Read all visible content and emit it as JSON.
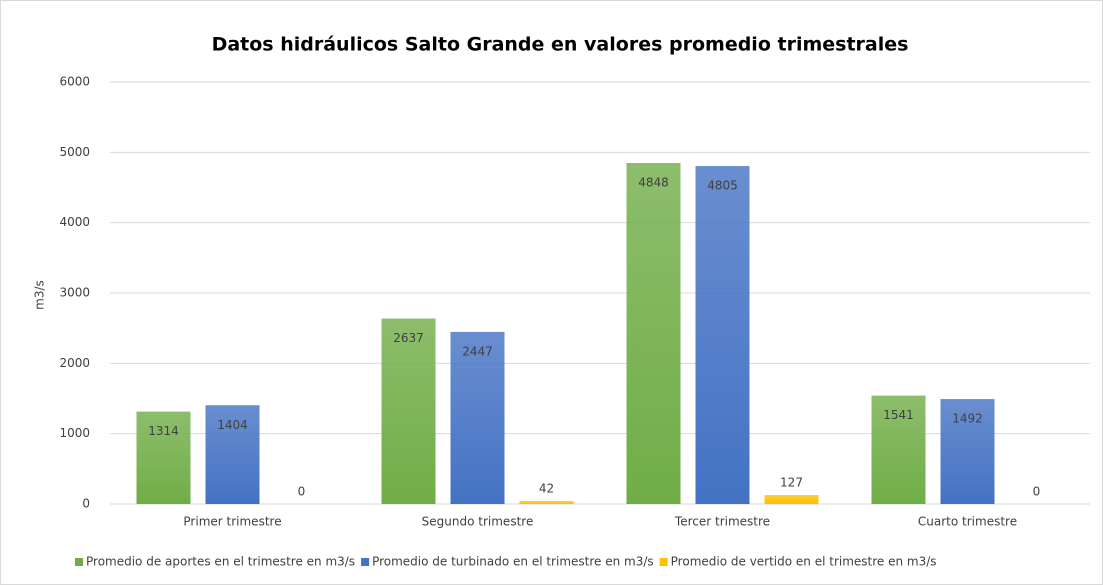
{
  "chart_data": {
    "type": "bar",
    "title": "Datos hidráulicos  Salto Grande  en valores promedio trimestrales",
    "y_label": "m3/s",
    "categories": [
      "Primer trimestre",
      "Segundo trimestre",
      "Tercer trimestre",
      "Cuarto trimestre"
    ],
    "series": [
      {
        "name": "Promedio de aportes en el trimestre en m3/s",
        "color": "#70ad47",
        "values": [
          1314,
          2637,
          4848,
          1541
        ]
      },
      {
        "name": "Promedio de turbinado en el trimestre en m3/s",
        "color": "#4472c4",
        "values": [
          1404,
          2447,
          4805,
          1492
        ]
      },
      {
        "name": "Promedio de vertido en el trimestre en m3/s",
        "color": "#ffc000",
        "values": [
          0,
          42,
          127,
          0
        ]
      }
    ],
    "ylim": [
      0,
      6000
    ],
    "yticks": [
      0,
      1000,
      2000,
      3000,
      4000,
      5000,
      6000
    ],
    "grid": true,
    "legend": "bottom"
  }
}
